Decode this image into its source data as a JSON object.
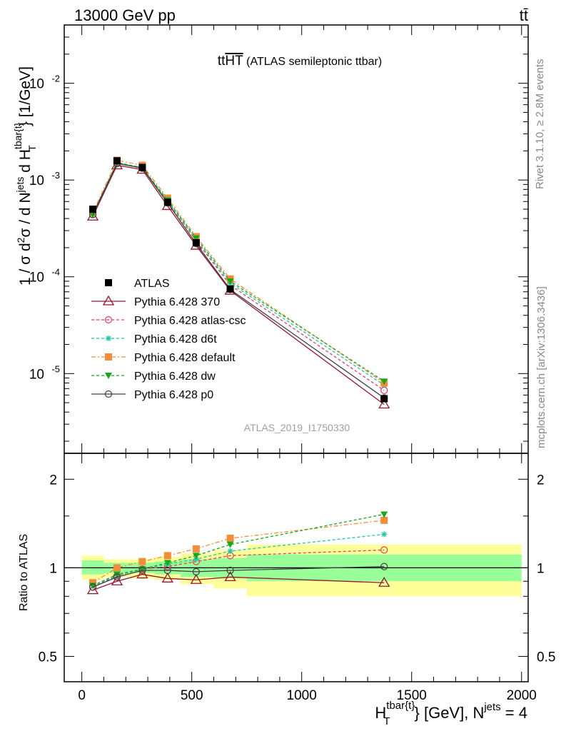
{
  "header": {
    "left": "13000 GeV pp",
    "right": "tt̄"
  },
  "side_labels": {
    "rivet": "Rivet 3.1.10, ≥ 2.8M events",
    "mcplots": "mcplots.cern.ch [arXiv:1306.3436]"
  },
  "analysis_tag": "ATLAS_2019_I1750330",
  "chart_data": [
    {
      "type": "line",
      "title_main": "tt",
      "title_over": "HT",
      "title_rest": " (ATLAS semileptonic ttbar)",
      "ylabel": "1 / σ d²σ / d N^jets d H_T^tbar{t} [1/GeV]",
      "xlabel": "H_T^tbar{t} [GeV], N^jets = 4",
      "y_scale": "log",
      "ylim": [
        1.5e-06,
        0.04
      ],
      "xlim": [
        -80,
        2030
      ],
      "y_ticks": [
        {
          "value": 1e-05,
          "label": "10",
          "exp": "-5"
        },
        {
          "value": 0.0001,
          "label": "10",
          "exp": "-4"
        },
        {
          "value": 0.001,
          "label": "10",
          "exp": "-3"
        },
        {
          "value": 0.01,
          "label": "10",
          "exp": "-2"
        }
      ],
      "x": [
        50,
        160,
        275,
        390,
        520,
        675,
        1375
      ],
      "series": [
        {
          "name": "ATLAS",
          "color": "#000000",
          "marker": "square",
          "dash": "none",
          "values": [
            0.0005,
            0.00158,
            0.00135,
            0.00059,
            0.000225,
            7.5e-05,
            5.5e-06
          ]
        },
        {
          "name": "Pythia 6.428 370",
          "color": "#99152e",
          "marker": "triangle-open",
          "dash": "none",
          "values": [
            0.00042,
            0.00142,
            0.00128,
            0.00054,
            0.00021,
            7.2e-05,
            4.8e-06
          ]
        },
        {
          "name": "Pythia 6.428 atlas-csc",
          "color": "#ee3a5c",
          "marker": "circle-open",
          "dash": "4,3",
          "values": [
            0.00044,
            0.0015,
            0.00132,
            0.0006,
            0.000235,
            8.2e-05,
            6.7e-06
          ]
        },
        {
          "name": "Pythia 6.428 d6t",
          "color": "#1fc7a6",
          "marker": "star",
          "dash": "4,3",
          "values": [
            0.00045,
            0.0015,
            0.00134,
            0.00061,
            0.00024,
            8.6e-05,
            7.6e-06
          ]
        },
        {
          "name": "Pythia 6.428 default",
          "color": "#f28d39",
          "marker": "square",
          "dash": "6,3,2,3",
          "values": [
            0.00046,
            0.0016,
            0.00142,
            0.00065,
            0.00026,
            9.5e-05,
            8e-06
          ]
        },
        {
          "name": "Pythia 6.428 dw",
          "color": "#18a818",
          "marker": "triangle-down",
          "dash": "4,3",
          "values": [
            0.00044,
            0.00152,
            0.00134,
            0.00062,
            0.00025,
            9e-05,
            8.3e-06
          ]
        },
        {
          "name": "Pythia 6.428 p0",
          "color": "#404040",
          "marker": "circle-open",
          "dash": "none",
          "values": [
            0.00044,
            0.00148,
            0.00133,
            0.00058,
            0.00022,
            7.4e-05,
            5.6e-06
          ]
        }
      ]
    },
    {
      "type": "line",
      "ylabel": "Ratio to ATLAS",
      "y_scale": "log",
      "ylim": [
        0.41,
        2.45
      ],
      "y_ticks": [
        {
          "value": 0.5,
          "label": "0.5"
        },
        {
          "value": 1,
          "label": "1"
        },
        {
          "value": 2,
          "label": "2"
        }
      ],
      "x_ticks": [
        {
          "value": 0,
          "label": "0"
        },
        {
          "value": 500,
          "label": "500"
        },
        {
          "value": 1000,
          "label": "1000"
        },
        {
          "value": 1500,
          "label": "1500"
        },
        {
          "value": 2000,
          "label": "2000"
        }
      ],
      "bands": [
        {
          "x0": 0,
          "x1": 100,
          "inner": [
            0.95,
            1.06
          ],
          "outer": [
            0.91,
            1.1
          ]
        },
        {
          "x0": 100,
          "x1": 220,
          "inner": [
            0.96,
            1.04
          ],
          "outer": [
            0.93,
            1.07
          ]
        },
        {
          "x0": 220,
          "x1": 330,
          "inner": [
            0.96,
            1.04
          ],
          "outer": [
            0.92,
            1.07
          ]
        },
        {
          "x0": 330,
          "x1": 450,
          "inner": [
            0.95,
            1.05
          ],
          "outer": [
            0.91,
            1.09
          ]
        },
        {
          "x0": 450,
          "x1": 600,
          "inner": [
            0.93,
            1.07
          ],
          "outer": [
            0.88,
            1.12
          ]
        },
        {
          "x0": 600,
          "x1": 750,
          "inner": [
            0.92,
            1.08
          ],
          "outer": [
            0.85,
            1.15
          ]
        },
        {
          "x0": 750,
          "x1": 2000,
          "inner": [
            0.9,
            1.11
          ],
          "outer": [
            0.8,
            1.2
          ]
        }
      ],
      "series": [
        {
          "name": "Pythia 6.428 370",
          "values": [
            0.84,
            0.9,
            0.95,
            0.92,
            0.91,
            0.93,
            0.89
          ]
        },
        {
          "name": "Pythia 6.428 atlas-csc",
          "values": [
            0.86,
            0.94,
            0.99,
            1.01,
            1.05,
            1.1,
            1.15
          ]
        },
        {
          "name": "Pythia 6.428 d6t",
          "values": [
            0.87,
            0.94,
            0.99,
            1.03,
            1.07,
            1.14,
            1.3
          ]
        },
        {
          "name": "Pythia 6.428 default",
          "values": [
            0.89,
            1.0,
            1.05,
            1.1,
            1.16,
            1.26,
            1.45
          ]
        },
        {
          "name": "Pythia 6.428 dw",
          "values": [
            0.87,
            0.95,
            0.99,
            1.04,
            1.1,
            1.2,
            1.52
          ]
        },
        {
          "name": "Pythia 6.428 p0",
          "values": [
            0.86,
            0.93,
            0.98,
            0.98,
            0.97,
            0.98,
            1.01
          ]
        }
      ]
    }
  ]
}
